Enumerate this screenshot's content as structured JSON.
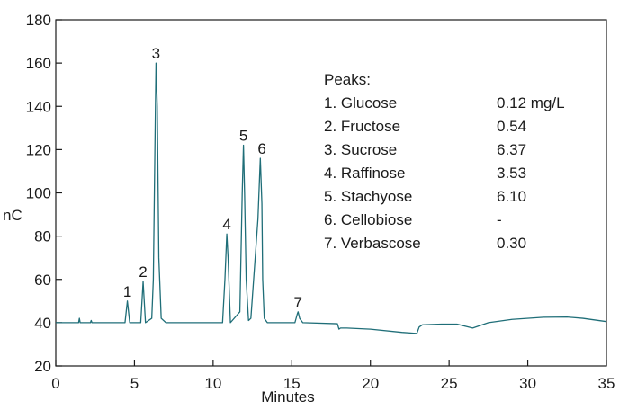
{
  "chart_data": {
    "type": "line",
    "xlabel": "Minutes",
    "ylabel": "nC",
    "xlim": [
      0,
      35
    ],
    "ylim": [
      20,
      180
    ],
    "x_ticks": [
      "0",
      "5",
      "10",
      "15",
      "20",
      "25",
      "30",
      "35"
    ],
    "y_ticks": [
      "20",
      "40",
      "60",
      "80",
      "100",
      "120",
      "140",
      "160",
      "180"
    ],
    "grid": false,
    "line_color": "#1f6e78",
    "series": [
      {
        "x": [
          0,
          1.45,
          1.5,
          1.55,
          1.6,
          2.2,
          2.25,
          2.3,
          4.4,
          4.55,
          4.7,
          5.4,
          5.55,
          5.7,
          6.1,
          6.2,
          6.3,
          6.37,
          6.45,
          6.55,
          6.7,
          7.0,
          10.6,
          10.75,
          10.87,
          10.95,
          11.1,
          11.7,
          11.85,
          11.93,
          12.0,
          12.1,
          12.25,
          12.4,
          12.85,
          13.0,
          13.1,
          13.15,
          13.25,
          13.45,
          13.7,
          15.2,
          15.35,
          15.4,
          15.5,
          15.7,
          17.9,
          18.0,
          18.1,
          18.5,
          20.0,
          22.0,
          22.95,
          23.1,
          23.3,
          24.5,
          25.5,
          26.5,
          27.5,
          29.0,
          31.0,
          32.5,
          33.5,
          35.0
        ],
        "y": [
          40,
          40,
          42,
          40,
          40,
          40,
          41,
          40,
          40,
          50,
          40,
          40,
          59,
          40,
          42,
          60,
          120,
          160,
          140,
          70,
          42,
          40,
          40,
          60,
          81,
          70,
          40,
          45,
          100,
          122,
          100,
          60,
          41,
          42,
          88,
          116,
          95,
          60,
          42,
          40,
          40,
          40,
          44,
          45,
          42,
          40,
          39.5,
          37,
          37.5,
          37.5,
          37,
          35.5,
          35,
          38,
          39,
          39.3,
          39.3,
          37.5,
          40,
          41.5,
          42.5,
          42.6,
          42,
          40.5
        ]
      }
    ],
    "peak_labels": [
      {
        "text": "1",
        "x": 4.55,
        "y": 50
      },
      {
        "text": "2",
        "x": 5.55,
        "y": 59
      },
      {
        "text": "3",
        "x": 6.37,
        "y": 160
      },
      {
        "text": "4",
        "x": 10.87,
        "y": 81
      },
      {
        "text": "5",
        "x": 11.93,
        "y": 122
      },
      {
        "text": "6",
        "x": 13.1,
        "y": 116
      },
      {
        "text": "7",
        "x": 15.4,
        "y": 45
      }
    ],
    "legend": {
      "title": "Peaks:",
      "items": [
        {
          "name": "1. Glucose",
          "value": "0.12 mg/L"
        },
        {
          "name": "2. Fructose",
          "value": "0.54"
        },
        {
          "name": "3. Sucrose",
          "value": "6.37"
        },
        {
          "name": "4. Raffinose",
          "value": "3.53"
        },
        {
          "name": "5. Stachyose",
          "value": "6.10"
        },
        {
          "name": "6. Cellobiose",
          "value": "-"
        },
        {
          "name": "7. Verbascose",
          "value": "0.30"
        }
      ]
    }
  }
}
